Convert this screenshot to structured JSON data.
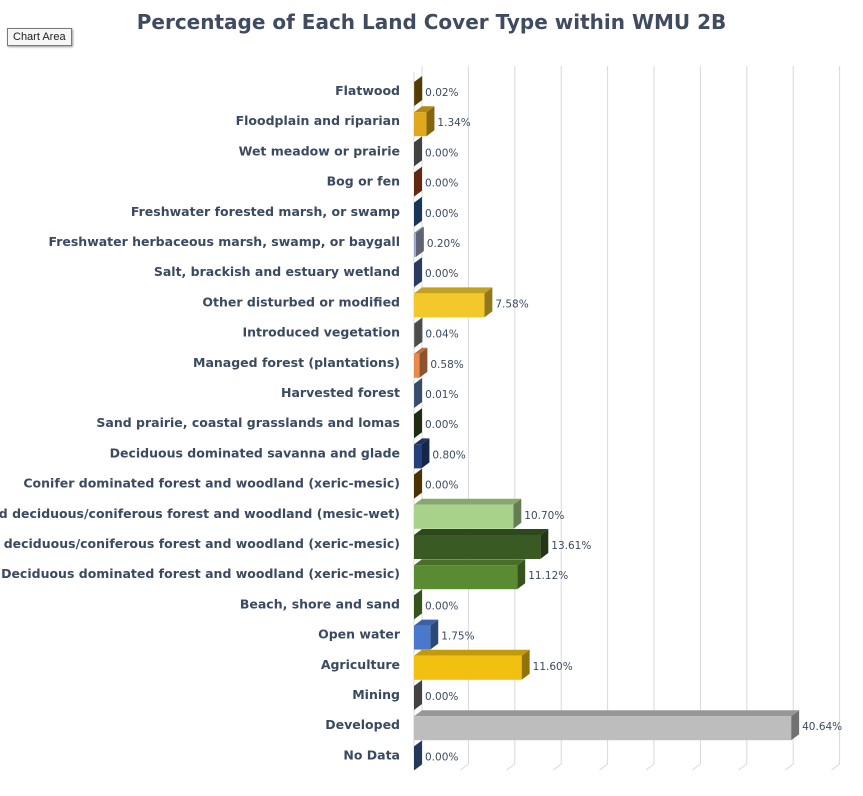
{
  "chart_area_label": "Chart Area",
  "chart_data": {
    "type": "bar",
    "orientation": "horizontal",
    "title": "Percentage of Each Land Cover Type within WMU 2B",
    "xlim": [
      0,
      45
    ],
    "grid": true,
    "categories": [
      "Flatwood",
      "Floodplain and riparian",
      "Wet meadow or prairie",
      "Bog or fen",
      "Freshwater forested  marsh, or swamp",
      "Freshwater herbaceous marsh, swamp, or baygall",
      "Salt, brackish and estuary wetland",
      "Other disturbed or modified",
      "Introduced vegetation",
      "Managed forest (plantations)",
      "Harvested forest",
      "Sand prairie, coastal grasslands and lomas",
      "Deciduous dominated savanna and glade",
      "Conifer dominated forest and woodland (xeric-mesic)",
      "Mixed deciduous/coniferous forest and woodland (mesic-wet)",
      "Mixed deciduous/coniferous forest and woodland  (xeric-mesic)",
      "Deciduous dominated forest and woodland (xeric-mesic)",
      "Beach, shore and sand",
      "Open water",
      "Agriculture",
      "Mining",
      "Developed",
      "No Data"
    ],
    "values": [
      0.02,
      1.34,
      0.0,
      0.0,
      0.0,
      0.2,
      0.0,
      7.58,
      0.04,
      0.58,
      0.01,
      0.0,
      0.8,
      0.0,
      10.7,
      13.61,
      11.12,
      0.0,
      1.75,
      11.6,
      0.0,
      40.64,
      0.0
    ],
    "labels": [
      "0.02%",
      "1.34%",
      "0.00%",
      "0.00%",
      "0.00%",
      "0.20%",
      "0.00%",
      "7.58%",
      "0.04%",
      "0.58%",
      "0.01%",
      "0.00%",
      "0.80%",
      "0.00%",
      "10.70%",
      "13.61%",
      "11.12%",
      "0.00%",
      "1.75%",
      "11.60%",
      "0.00%",
      "40.64%",
      "0.00%"
    ],
    "colors": [
      "#8a6400",
      "#e0a81c",
      "#6d6d6d",
      "#a8401a",
      "#2a5a93",
      "#9aa7c3",
      "#4666a0",
      "#f2c82a",
      "#7f7f7f",
      "#e88a4e",
      "#5a7fb0",
      "#2e4b1e",
      "#24407a",
      "#7d5306",
      "#a8d18a",
      "#3a5a24",
      "#5a8a32",
      "#5c8a2e",
      "#4a78cc",
      "#f2c010",
      "#6e6e6e",
      "#bdbdbd",
      "#3a5f95"
    ]
  }
}
